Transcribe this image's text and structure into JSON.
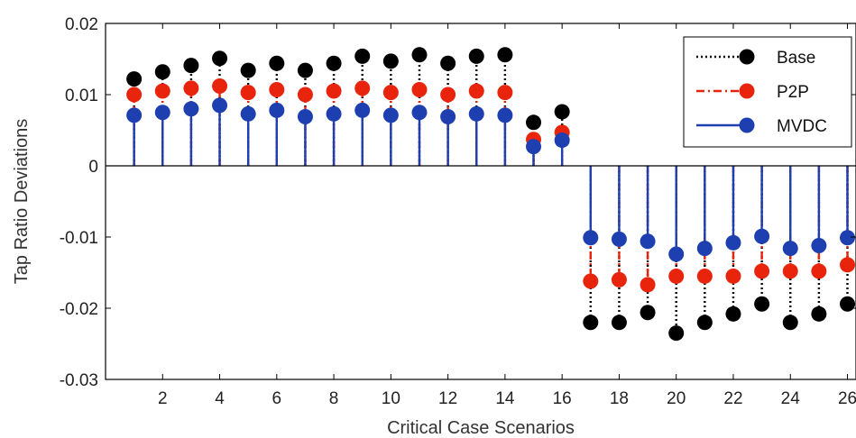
{
  "chart_data": {
    "type": "stem",
    "title": "",
    "xlabel": "Critical Case Scenarios",
    "ylabel": "Tap Ratio Deviations",
    "xlim": [
      0,
      26.3
    ],
    "ylim": [
      -0.03,
      0.02
    ],
    "xticks": [
      2,
      4,
      6,
      8,
      10,
      12,
      14,
      16,
      18,
      20,
      22,
      24,
      26
    ],
    "yticks": [
      0.02,
      0.01,
      0,
      -0.01,
      -0.02,
      -0.03
    ],
    "ytick_labels": [
      "0.02",
      "0.01",
      "0",
      "-0.01",
      "-0.02",
      "-0.03"
    ],
    "grid": false,
    "legend_position": "top-right",
    "x": [
      1,
      2,
      3,
      4,
      5,
      6,
      7,
      8,
      9,
      10,
      11,
      12,
      13,
      14,
      15,
      16,
      17,
      18,
      19,
      20,
      21,
      22,
      23,
      24,
      25,
      26
    ],
    "series": [
      {
        "name": "Base",
        "color": "#000000",
        "line_style": "dotted",
        "values": [
          0.0122,
          0.0132,
          0.0141,
          0.0151,
          0.0134,
          0.0144,
          0.0134,
          0.0144,
          0.0154,
          0.0147,
          0.0156,
          0.0144,
          0.0154,
          0.0156,
          0.0061,
          0.0076,
          -0.022,
          -0.022,
          -0.0206,
          -0.0235,
          -0.022,
          -0.0208,
          -0.0194,
          -0.022,
          -0.0208,
          -0.0194
        ]
      },
      {
        "name": "P2P",
        "color": "#e8250c",
        "line_style": "dashdot",
        "values": [
          0.01,
          0.0105,
          0.0109,
          0.0112,
          0.0103,
          0.0107,
          0.01,
          0.0105,
          0.0109,
          0.0103,
          0.0107,
          0.01,
          0.0105,
          0.0103,
          0.0037,
          0.0047,
          -0.0162,
          -0.016,
          -0.0167,
          -0.0155,
          -0.0155,
          -0.0155,
          -0.0148,
          -0.0148,
          -0.0148,
          -0.0139
        ]
      },
      {
        "name": "MVDC",
        "color": "#1d3fb0",
        "line_style": "solid",
        "values": [
          0.0071,
          0.0075,
          0.008,
          0.0085,
          0.0073,
          0.0078,
          0.0069,
          0.0073,
          0.0078,
          0.0071,
          0.0075,
          0.0069,
          0.0073,
          0.0071,
          0.0027,
          0.0036,
          -0.0101,
          -0.0103,
          -0.0106,
          -0.0124,
          -0.0116,
          -0.0108,
          -0.0099,
          -0.0116,
          -0.0112,
          -0.0101
        ]
      }
    ]
  }
}
